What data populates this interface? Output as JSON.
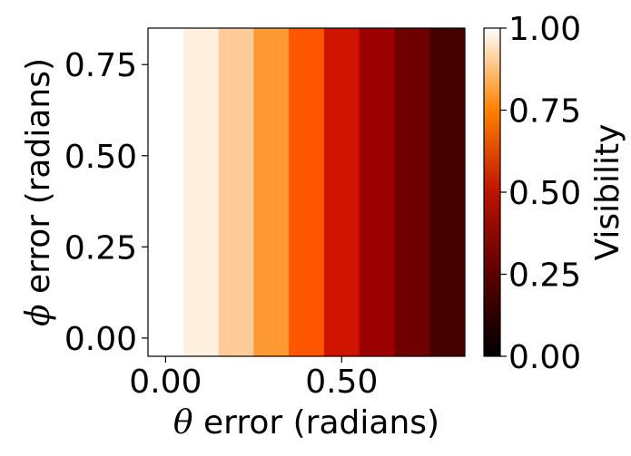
{
  "chart_data": {
    "type": "heatmap",
    "title": "",
    "xlabel": {
      "symbol": "θ",
      "text": " error (radians)"
    },
    "ylabel": {
      "symbol": "ϕ",
      "text": " error (radians)"
    },
    "xlim": [
      -0.05,
      0.85
    ],
    "ylim": [
      -0.05,
      0.85
    ],
    "x_ticks": [
      0.0,
      0.5
    ],
    "x_tick_labels": [
      "0.00",
      "0.50"
    ],
    "y_ticks": [
      0.0,
      0.25,
      0.5,
      0.75
    ],
    "y_tick_labels": [
      "0.00",
      "0.25",
      "0.50",
      "0.75"
    ],
    "bins": {
      "x_edges": [
        -0.05,
        0.05,
        0.15,
        0.25,
        0.35,
        0.45,
        0.55,
        0.65,
        0.75,
        0.85
      ],
      "visibility": [
        1.0,
        0.97,
        0.9,
        0.8,
        0.67,
        0.54,
        0.41,
        0.29,
        0.18
      ]
    },
    "colorbar": {
      "label": "Visibility",
      "range": [
        0.0,
        1.0
      ],
      "ticks": [
        0.0,
        0.25,
        0.5,
        0.75,
        1.0
      ],
      "tick_labels": [
        "0.00",
        "0.25",
        "0.50",
        "0.75",
        "1.00"
      ],
      "colormap": "gist_heat"
    },
    "grid": false
  }
}
